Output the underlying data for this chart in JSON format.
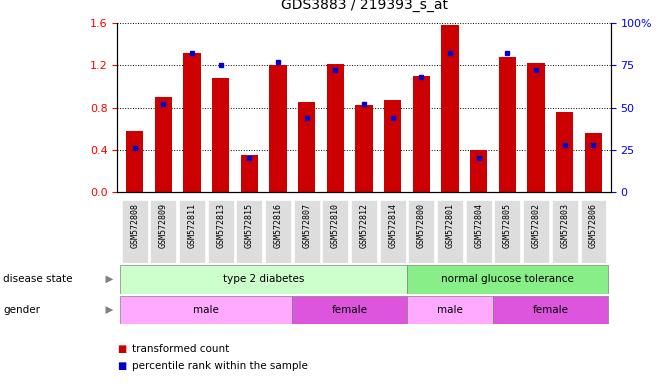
{
  "title": "GDS3883 / 219393_s_at",
  "samples": [
    "GSM572808",
    "GSM572809",
    "GSM572811",
    "GSM572813",
    "GSM572815",
    "GSM572816",
    "GSM572807",
    "GSM572810",
    "GSM572812",
    "GSM572814",
    "GSM572800",
    "GSM572801",
    "GSM572804",
    "GSM572805",
    "GSM572802",
    "GSM572803",
    "GSM572806"
  ],
  "transformed_count": [
    0.58,
    0.9,
    1.32,
    1.08,
    0.35,
    1.2,
    0.85,
    1.21,
    0.82,
    0.87,
    1.1,
    1.58,
    0.4,
    1.28,
    1.22,
    0.76,
    0.56
  ],
  "percentile_rank": [
    26,
    52,
    82,
    75,
    20,
    77,
    44,
    72,
    52,
    44,
    68,
    82,
    20,
    82,
    72,
    28,
    28
  ],
  "ylim_left": [
    0,
    1.6
  ],
  "ylim_right": [
    0,
    100
  ],
  "yticks_left": [
    0,
    0.4,
    0.8,
    1.2,
    1.6
  ],
  "yticks_right": [
    0,
    25,
    50,
    75,
    100
  ],
  "bar_color": "#cc0000",
  "dot_color": "#0000cc",
  "disease_state_groups": [
    {
      "label": "type 2 diabetes",
      "start": 0,
      "end": 10,
      "color": "#ccffcc"
    },
    {
      "label": "normal glucose tolerance",
      "start": 10,
      "end": 17,
      "color": "#88ee88"
    }
  ],
  "gender_groups": [
    {
      "label": "male",
      "start": 0,
      "end": 6,
      "color": "#ffaaff"
    },
    {
      "label": "female",
      "start": 6,
      "end": 10,
      "color": "#dd55dd"
    },
    {
      "label": "male",
      "start": 10,
      "end": 13,
      "color": "#ffaaff"
    },
    {
      "label": "female",
      "start": 13,
      "end": 17,
      "color": "#dd55dd"
    }
  ],
  "legend_items": [
    {
      "label": "transformed count",
      "color": "#cc0000"
    },
    {
      "label": "percentile rank within the sample",
      "color": "#0000cc"
    }
  ],
  "xtick_bg": "#dddddd"
}
